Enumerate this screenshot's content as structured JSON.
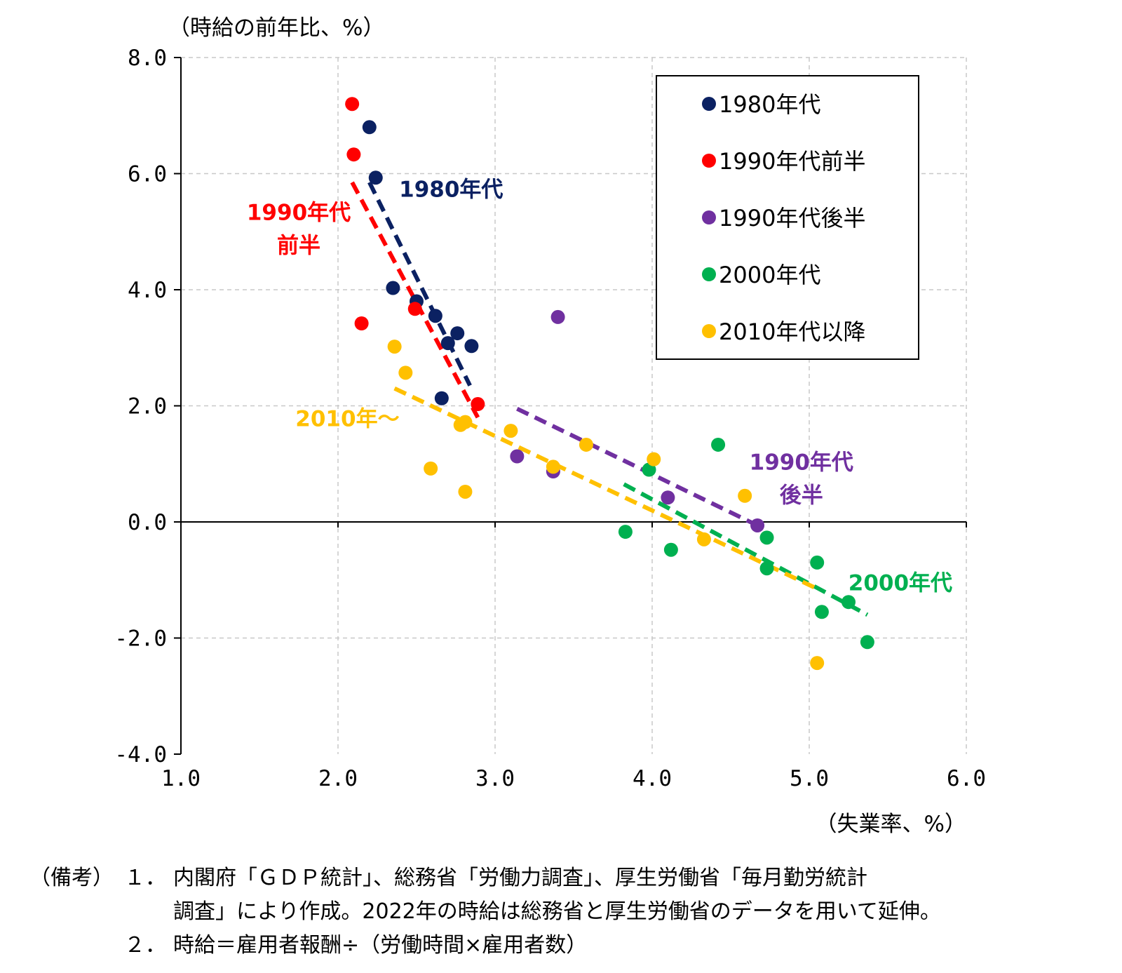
{
  "chart_data": {
    "type": "scatter",
    "ylabel": "（時給の前年比、%）",
    "xlabel": "（失業率、%）",
    "xlim": [
      1.0,
      6.0
    ],
    "ylim": [
      -4.0,
      8.0
    ],
    "xticks": [
      "1.0",
      "2.0",
      "3.0",
      "4.0",
      "5.0",
      "6.0"
    ],
    "yticks": [
      "8.0",
      "6.0",
      "4.0",
      "2.0",
      "0.0",
      "-2.0",
      "-4.0"
    ],
    "grid": true,
    "legend_position": "top-right",
    "series": [
      {
        "name": "1980年代",
        "color": "#0b2162",
        "points": [
          [
            2.2,
            6.8
          ],
          [
            2.24,
            5.93
          ],
          [
            2.35,
            4.03
          ],
          [
            2.5,
            3.8
          ],
          [
            2.62,
            3.55
          ],
          [
            2.7,
            3.08
          ],
          [
            2.76,
            3.25
          ],
          [
            2.85,
            3.03
          ],
          [
            2.66,
            2.13
          ]
        ],
        "trend": [
          [
            2.2,
            5.85
          ],
          [
            2.84,
            2.35
          ]
        ],
        "label_lines": [
          "1980年代"
        ],
        "label_pos": [
          2.72,
          5.6
        ]
      },
      {
        "name": "1990年代前半",
        "color": "#ff0000",
        "points": [
          [
            2.09,
            7.2
          ],
          [
            2.1,
            6.33
          ],
          [
            2.15,
            3.42
          ],
          [
            2.49,
            3.67
          ],
          [
            2.89,
            2.03
          ]
        ],
        "trend": [
          [
            2.09,
            5.85
          ],
          [
            2.89,
            1.8
          ]
        ],
        "label_lines": [
          "1990年代",
          "前半"
        ],
        "label_pos": [
          1.75,
          5.2
        ]
      },
      {
        "name": "1990年代後半",
        "color": "#7030a0",
        "points": [
          [
            3.4,
            3.53
          ],
          [
            3.14,
            1.13
          ],
          [
            3.37,
            0.87
          ],
          [
            4.1,
            0.42
          ],
          [
            4.67,
            -0.06
          ]
        ],
        "trend": [
          [
            3.14,
            1.95
          ],
          [
            4.67,
            -0.06
          ]
        ],
        "label_lines": [
          "1990年代",
          "後半"
        ],
        "label_pos": [
          4.95,
          0.9
        ]
      },
      {
        "name": "2000年代",
        "color": "#00b050",
        "points": [
          [
            4.42,
            1.33
          ],
          [
            3.98,
            0.9
          ],
          [
            3.83,
            -0.17
          ],
          [
            4.12,
            -0.48
          ],
          [
            4.73,
            -0.27
          ],
          [
            4.73,
            -0.8
          ],
          [
            5.05,
            -0.7
          ],
          [
            5.08,
            -1.55
          ],
          [
            5.25,
            -1.38
          ],
          [
            5.37,
            -2.07
          ]
        ],
        "trend": [
          [
            3.82,
            0.65
          ],
          [
            5.37,
            -1.6
          ]
        ],
        "label_lines": [
          "2000年代"
        ],
        "label_pos": [
          5.58,
          -1.18
        ]
      },
      {
        "name": "2010年代以降",
        "color": "#ffc000",
        "points": [
          [
            2.36,
            3.02
          ],
          [
            2.43,
            2.57
          ],
          [
            2.78,
            1.67
          ],
          [
            2.81,
            1.72
          ],
          [
            3.1,
            1.57
          ],
          [
            2.59,
            0.92
          ],
          [
            2.81,
            0.52
          ],
          [
            3.37,
            0.95
          ],
          [
            3.58,
            1.33
          ],
          [
            4.01,
            1.08
          ],
          [
            4.33,
            -0.3
          ],
          [
            4.59,
            0.45
          ],
          [
            5.05,
            -2.43
          ]
        ],
        "trend": [
          [
            2.36,
            2.3
          ],
          [
            5.05,
            -1.15
          ]
        ],
        "label_lines": [
          "2010年～"
        ],
        "label_pos": [
          2.06,
          1.65
        ]
      }
    ]
  },
  "notes": {
    "head": "（備考）",
    "items": [
      {
        "num": "１．",
        "lines": [
          "内閣府「ＧＤＰ統計」、総務省「労働力調査」、厚生労働省「毎月勤労統計",
          "調査」により作成。2022年の時給は総務省と厚生労働省のデータを用いて延伸。"
        ]
      },
      {
        "num": "２．",
        "lines": [
          "時給＝雇用者報酬÷（労働時間×雇用者数）"
        ]
      }
    ]
  }
}
